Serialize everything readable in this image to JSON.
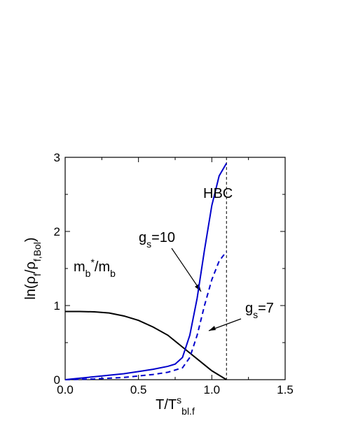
{
  "chart_data": {
    "type": "line",
    "xlabel": [
      {
        "text": "T/T"
      },
      {
        "text": "s",
        "sup": true
      },
      {
        "text": "bl.f",
        "sub": true
      }
    ],
    "ylabel": [
      {
        "text": "ln(ρ"
      },
      {
        "text": "f",
        "sub": true
      },
      {
        "text": "/ρ"
      },
      {
        "text": "f,Bol",
        "sub": true
      },
      {
        "text": ")"
      }
    ],
    "xlim": [
      0,
      1.5
    ],
    "ylim": [
      0,
      3
    ],
    "xticks": [
      {
        "value": 0,
        "label": "0.0"
      },
      {
        "value": 0.5,
        "label": "0.5"
      },
      {
        "value": 1,
        "label": "1.0"
      },
      {
        "value": 1.5,
        "label": "1.5"
      }
    ],
    "yticks": [
      0,
      1,
      2,
      3
    ],
    "xminorticks": [
      0.25,
      0.75,
      1.25
    ],
    "yminorticks": [
      0.5,
      1.5,
      2.5
    ],
    "vline": 1.1,
    "series": [
      {
        "color": "#000000",
        "dash": false,
        "x": [
          0,
          0.1,
          0.2,
          0.3,
          0.4,
          0.5,
          0.6,
          0.7,
          0.8,
          0.9,
          1.0,
          1.1
        ],
        "values": [
          0.92,
          0.92,
          0.915,
          0.9,
          0.86,
          0.8,
          0.71,
          0.6,
          0.44,
          0.28,
          0.12,
          0.0
        ]
      },
      {
        "color": "#0000cc",
        "dash": false,
        "x": [
          0,
          0.1,
          0.2,
          0.3,
          0.4,
          0.5,
          0.6,
          0.7,
          0.75,
          0.8,
          0.85,
          0.9,
          0.95,
          1.0,
          1.05,
          1.1
        ],
        "values": [
          0,
          0.02,
          0.04,
          0.06,
          0.08,
          0.11,
          0.14,
          0.18,
          0.21,
          0.3,
          0.6,
          1.1,
          1.75,
          2.35,
          2.75,
          2.92
        ]
      },
      {
        "color": "#0000cc",
        "dash": true,
        "x": [
          0,
          0.2,
          0.4,
          0.6,
          0.7,
          0.8,
          0.85,
          0.9,
          0.95,
          1.0,
          1.05,
          1.1
        ],
        "values": [
          0,
          0.01,
          0.03,
          0.07,
          0.1,
          0.16,
          0.3,
          0.6,
          1.0,
          1.35,
          1.6,
          1.73
        ]
      }
    ],
    "annotations": [
      {
        "parts": [
          {
            "text": "HBC"
          }
        ]
      },
      {
        "parts": [
          {
            "text": "g"
          },
          {
            "text": "s",
            "sub": true
          },
          {
            "text": "=10"
          }
        ]
      },
      {
        "parts": [
          {
            "text": "g"
          },
          {
            "text": "s",
            "sub": true
          },
          {
            "text": "=7"
          }
        ]
      },
      {
        "parts": [
          {
            "text": "m"
          },
          {
            "text": "b",
            "sub": true
          },
          {
            "text": "*",
            "sup": true
          },
          {
            "text": "/m"
          },
          {
            "text": "b",
            "sub": true
          }
        ]
      }
    ]
  }
}
